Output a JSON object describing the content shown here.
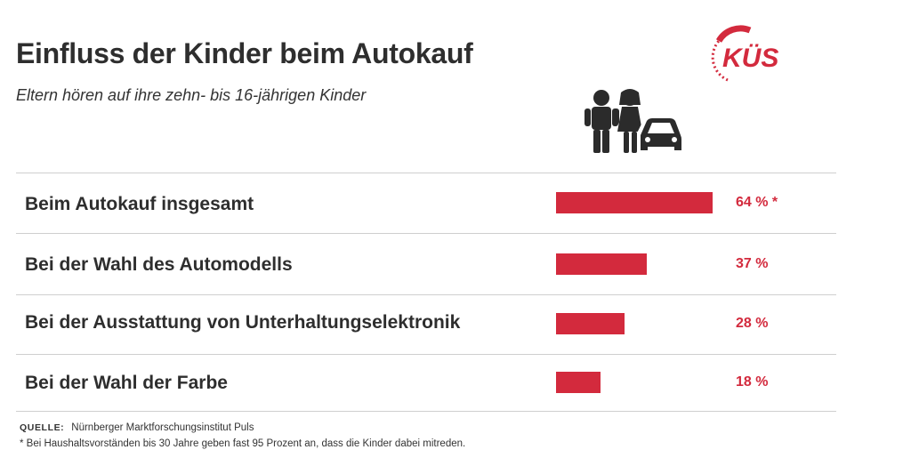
{
  "header": {
    "title": "Einfluss der Kinder beim Autokauf",
    "subtitle": "Eltern hören auf ihre zehn- bis 16-jährigen Kinder"
  },
  "logo": {
    "text": "KÜS",
    "color": "#d32a3d"
  },
  "chart_data": {
    "type": "bar",
    "orientation": "horizontal",
    "title": "Einfluss der Kinder beim Autokauf",
    "subtitle": "Eltern hören auf ihre zehn- bis 16-jährigen Kinder",
    "categories": [
      "Beim Autokauf insgesamt",
      "Bei der Wahl des Automodells",
      "Bei der Ausstattung von Unterhaltungselektronik",
      "Bei der Wahl der Farbe"
    ],
    "values": [
      64,
      37,
      28,
      18
    ],
    "value_labels": [
      "64 % *",
      "37 %",
      "28 %",
      "18 %"
    ],
    "unit": "%",
    "xlim": [
      0,
      64
    ],
    "bar_color": "#d32a3d"
  },
  "footer": {
    "source_label": "QUELLE:",
    "source_text": "Nürnberger Marktforschungsinstitut Puls",
    "footnote": "* Bei Haushaltsvorständen bis 30 Jahre geben fast 95 Prozent an, dass die Kinder dabei mitreden."
  },
  "icons": [
    "kues-logo-icon",
    "children-car-icon"
  ]
}
